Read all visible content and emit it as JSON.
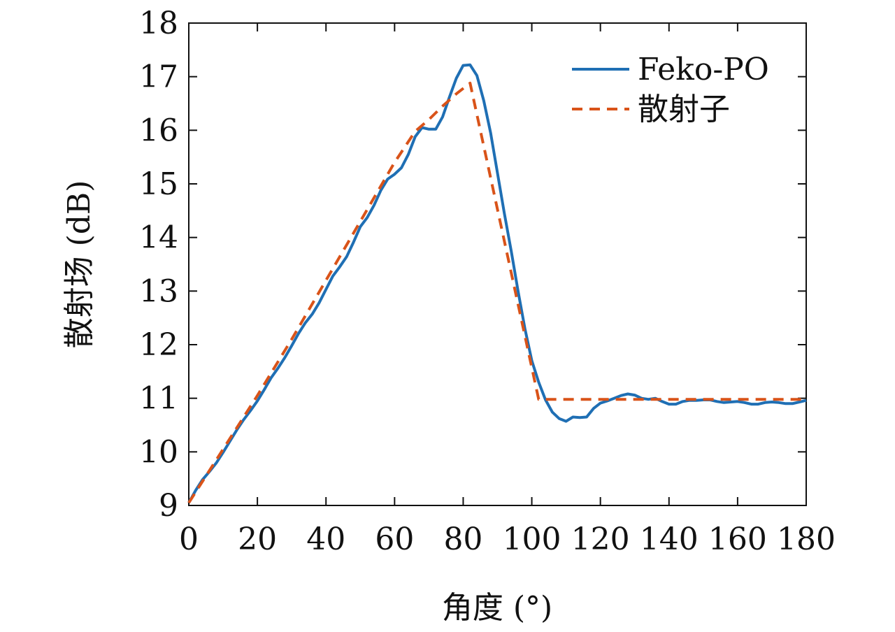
{
  "chart_data": {
    "type": "line",
    "xlabel": "角度 (°)",
    "ylabel": "散射场 (dB)",
    "xlim": [
      0,
      180
    ],
    "ylim": [
      9,
      18
    ],
    "xticks": [
      0,
      20,
      40,
      60,
      80,
      100,
      120,
      140,
      160,
      180
    ],
    "yticks": [
      9,
      10,
      11,
      12,
      13,
      14,
      15,
      16,
      17,
      18
    ],
    "xtick_labels": [
      "0",
      "20",
      "40",
      "60",
      "80",
      "100",
      "120",
      "140",
      "160",
      "180"
    ],
    "ytick_labels": [
      "9",
      "10",
      "11",
      "12",
      "13",
      "14",
      "15",
      "16",
      "17",
      "18"
    ],
    "grid": false,
    "legend_position": "top-right",
    "series": [
      {
        "name": "Feko-PO",
        "color": "#1f6fb4",
        "style": "solid",
        "x": [
          0,
          2,
          4,
          6,
          8,
          10,
          12,
          14,
          16,
          18,
          20,
          22,
          24,
          26,
          28,
          30,
          32,
          34,
          36,
          38,
          40,
          42,
          44,
          46,
          48,
          50,
          52,
          54,
          56,
          58,
          60,
          62,
          64,
          66,
          68,
          70,
          72,
          74,
          76,
          78,
          80,
          82,
          84,
          86,
          88,
          90,
          92,
          94,
          96,
          98,
          100,
          102,
          104,
          106,
          108,
          110,
          112,
          114,
          116,
          118,
          120,
          122,
          124,
          126,
          128,
          130,
          132,
          134,
          136,
          138,
          140,
          142,
          144,
          146,
          148,
          150,
          152,
          154,
          156,
          158,
          160,
          162,
          164,
          166,
          168,
          170,
          172,
          174,
          176,
          178,
          180
        ],
        "y": [
          9.05,
          9.28,
          9.48,
          9.63,
          9.79,
          9.99,
          10.2,
          10.41,
          10.6,
          10.77,
          10.95,
          11.16,
          11.38,
          11.56,
          11.76,
          11.98,
          12.21,
          12.41,
          12.57,
          12.78,
          13.03,
          13.28,
          13.45,
          13.64,
          13.91,
          14.2,
          14.37,
          14.6,
          14.88,
          15.09,
          15.18,
          15.3,
          15.55,
          15.88,
          16.05,
          16.02,
          16.02,
          16.25,
          16.62,
          16.97,
          17.21,
          17.22,
          17.02,
          16.55,
          15.95,
          15.2,
          14.45,
          13.75,
          13.0,
          12.3,
          11.7,
          11.3,
          10.97,
          10.74,
          10.62,
          10.57,
          10.65,
          10.64,
          10.65,
          10.81,
          10.91,
          10.95,
          11.0,
          11.05,
          11.08,
          11.06,
          11.0,
          10.98,
          11.0,
          10.94,
          10.89,
          10.89,
          10.94,
          10.96,
          10.96,
          10.97,
          10.97,
          10.94,
          10.92,
          10.93,
          10.94,
          10.92,
          10.89,
          10.89,
          10.92,
          10.93,
          10.92,
          10.9,
          10.9,
          10.93,
          10.96
        ]
      },
      {
        "name": "散射子",
        "color": "#d95319",
        "style": "dashed",
        "x": [
          0,
          10,
          20,
          30,
          40,
          50,
          60,
          66,
          70,
          74,
          78,
          82,
          102,
          180
        ],
        "y": [
          9.05,
          10.05,
          11.05,
          12.1,
          13.2,
          14.3,
          15.4,
          15.98,
          16.2,
          16.45,
          16.68,
          16.88,
          10.98,
          10.98
        ]
      }
    ]
  }
}
